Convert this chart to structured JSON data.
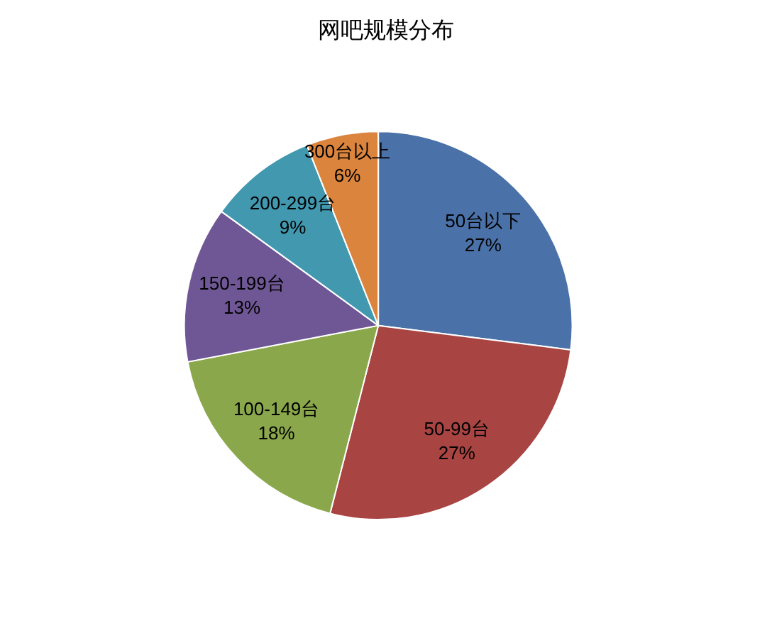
{
  "chart_data": {
    "type": "pie",
    "title": "网吧规模分布",
    "categories": [
      "50台以下",
      "50-99台",
      "100-149台",
      "150-199台",
      "200-299台",
      "300台以上"
    ],
    "values": [
      27,
      27,
      18,
      13,
      9,
      6
    ],
    "value_labels": [
      "27%",
      "27%",
      "18%",
      "13%",
      "9%",
      "6%"
    ],
    "colors": [
      "#4a72a8",
      "#a84442",
      "#8aa84b",
      "#6f5796",
      "#4198af",
      "#db843d"
    ],
    "legend": false
  }
}
